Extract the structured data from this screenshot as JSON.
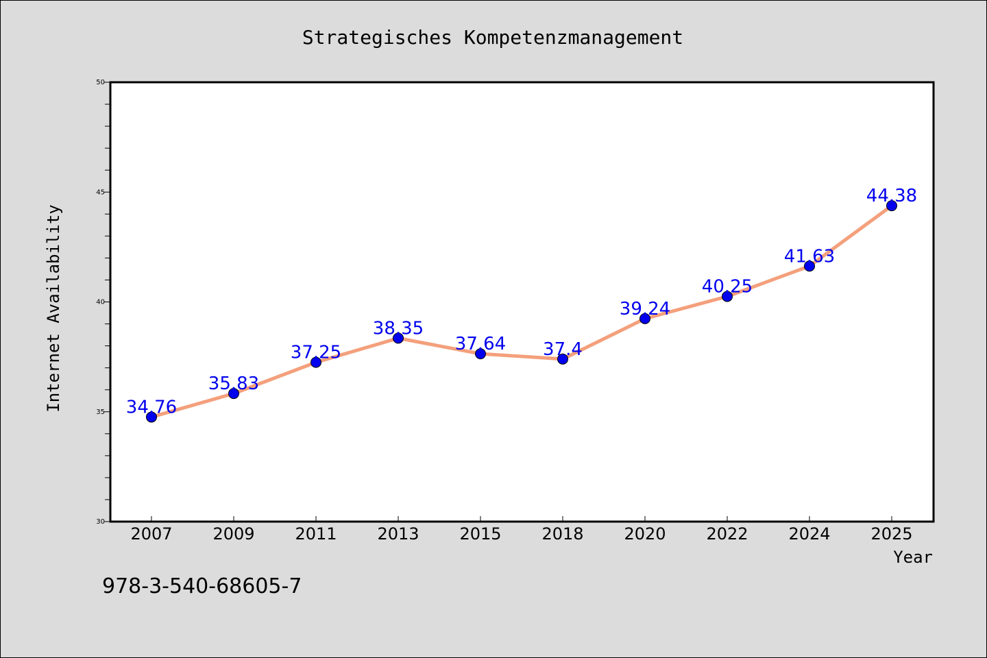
{
  "chart_data": {
    "type": "line",
    "title": "Strategisches Kompetenzmanagement",
    "xlabel": "Year",
    "ylabel": "Internet Availability",
    "categories": [
      "2007",
      "2009",
      "2011",
      "2013",
      "2015",
      "2018",
      "2020",
      "2022",
      "2024",
      "2025"
    ],
    "series": [
      {
        "values": [
          34.76,
          35.83,
          37.25,
          38.35,
          37.64,
          37.4,
          39.24,
          40.25,
          41.63,
          44.38
        ],
        "labels": [
          "34.76",
          "35.83",
          "37.25",
          "38.35",
          "37.64",
          "37.4",
          "39.24",
          "40.25",
          "41.63",
          "44.38"
        ],
        "line_color": "#f4a07c",
        "marker_color": "#0000ee",
        "label_color": "#0000ee"
      }
    ],
    "ylim": [
      30,
      50
    ],
    "yticks": [
      30,
      35,
      40,
      45,
      50
    ],
    "ytick_labels": [
      "30",
      "35",
      "40",
      "45",
      "50"
    ],
    "grid": false,
    "legend": "none"
  },
  "footer": {
    "isbn": "978-3-540-68605-7"
  }
}
